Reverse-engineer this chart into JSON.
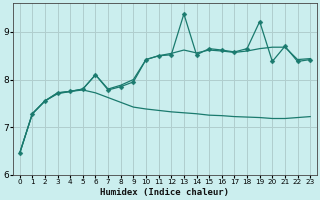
{
  "xlabel": "Humidex (Indice chaleur)",
  "xlim": [
    -0.5,
    23.5
  ],
  "ylim": [
    6,
    9.6
  ],
  "yticks": [
    6,
    7,
    8,
    9
  ],
  "xticks": [
    0,
    1,
    2,
    3,
    4,
    5,
    6,
    7,
    8,
    9,
    10,
    11,
    12,
    13,
    14,
    15,
    16,
    17,
    18,
    19,
    20,
    21,
    22,
    23
  ],
  "background_color": "#cbeeee",
  "grid_color": "#b0cece",
  "line_color": "#1a7a6e",
  "line1_x": [
    0,
    1,
    2,
    3,
    4,
    5,
    6,
    7,
    8,
    9,
    10,
    11,
    12,
    13,
    14,
    15,
    16,
    17,
    18,
    19,
    20,
    21,
    22,
    23
  ],
  "line1_y": [
    6.45,
    7.28,
    7.55,
    7.7,
    7.75,
    7.78,
    7.72,
    7.62,
    7.52,
    7.42,
    7.38,
    7.35,
    7.32,
    7.3,
    7.28,
    7.25,
    7.24,
    7.22,
    7.21,
    7.2,
    7.18,
    7.18,
    7.2,
    7.22
  ],
  "line2_x": [
    0,
    1,
    2,
    3,
    4,
    5,
    6,
    7,
    8,
    9,
    10,
    11,
    12,
    13,
    14,
    15,
    16,
    17,
    18,
    19,
    20,
    21,
    22,
    23
  ],
  "line2_y": [
    6.45,
    7.28,
    7.55,
    7.72,
    7.75,
    7.8,
    8.1,
    7.78,
    7.85,
    7.95,
    8.42,
    8.5,
    8.52,
    9.38,
    8.52,
    8.65,
    8.62,
    8.58,
    8.65,
    9.22,
    8.38,
    8.7,
    8.38,
    8.42
  ],
  "line3_x": [
    0,
    1,
    2,
    3,
    4,
    5,
    6,
    7,
    8,
    9,
    10,
    11,
    12,
    13,
    14,
    15,
    16,
    17,
    18,
    19,
    20,
    21,
    22,
    23
  ],
  "line3_y": [
    6.45,
    7.28,
    7.55,
    7.72,
    7.75,
    7.8,
    8.1,
    7.8,
    7.88,
    8.0,
    8.42,
    8.5,
    8.55,
    8.62,
    8.56,
    8.62,
    8.6,
    8.57,
    8.6,
    8.65,
    8.68,
    8.68,
    8.42,
    8.44
  ],
  "marker_size": 2.5
}
